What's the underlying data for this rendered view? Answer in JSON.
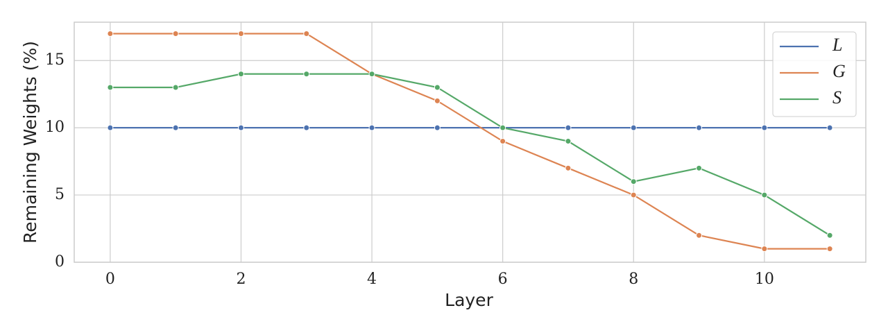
{
  "chart_data": {
    "type": "line",
    "xlabel": "Layer",
    "ylabel": "Remaining Weights (%)",
    "x": [
      0,
      1,
      2,
      3,
      4,
      5,
      6,
      7,
      8,
      9,
      10,
      11
    ],
    "series": [
      {
        "name": "L",
        "color": "#4c72b0",
        "values": [
          10,
          10,
          10,
          10,
          10,
          10,
          10,
          10,
          10,
          10,
          10,
          10
        ]
      },
      {
        "name": "G",
        "color": "#dd8452",
        "values": [
          17,
          17,
          17,
          17,
          14,
          12,
          9,
          7,
          5,
          2,
          1,
          1
        ]
      },
      {
        "name": "S",
        "color": "#55a868",
        "values": [
          13,
          13,
          14,
          14,
          14,
          13,
          10,
          9,
          6,
          7,
          5,
          2
        ]
      }
    ],
    "xlim": [
      -0.55,
      11.55
    ],
    "xticks": [
      0,
      2,
      4,
      6,
      8,
      10
    ],
    "ylim": [
      0,
      17.85
    ],
    "yticks": [
      0,
      5,
      10,
      15
    ],
    "grid": true,
    "legend": "upper right"
  }
}
